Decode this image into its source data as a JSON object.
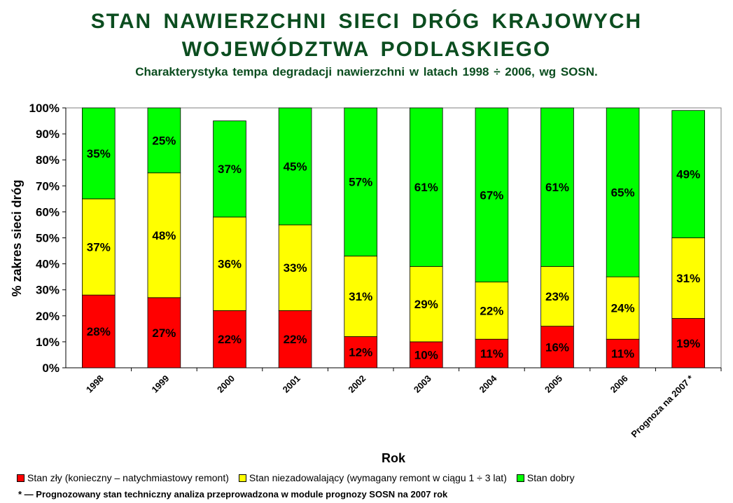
{
  "header": {
    "title_line1": "STAN NAWIERZCHNI SIECI DRÓG KRAJOWYCH",
    "title_line2": "WOJEWÓDZTWA PODLASKIEGO",
    "subtitle": "Charakterystyka tempa degradacji nawierzchni w latach 1998 ÷ 2006, wg SOSN."
  },
  "chart_data": {
    "type": "bar",
    "stacked": true,
    "percent": true,
    "categories": [
      "1998",
      "1999",
      "2000",
      "2001",
      "2002",
      "2003",
      "2004",
      "2005",
      "2006",
      "Prognoza na 2007 *"
    ],
    "series": [
      {
        "name": "Stan zły (konieczny – natychmiastowy remont)",
        "color": "#ff0000",
        "values": [
          28,
          27,
          22,
          22,
          12,
          10,
          11,
          16,
          11,
          19
        ],
        "labels": [
          "28%",
          "27%",
          "22%",
          "22%",
          "12%",
          "10%",
          "11%",
          "16%",
          "11%",
          "19%"
        ]
      },
      {
        "name": "Stan niezadowalający (wymagany  remont w ciągu 1 ÷ 3 lat)",
        "color": "#ffff00",
        "values": [
          37,
          48,
          36,
          33,
          31,
          29,
          22,
          23,
          24,
          31
        ],
        "labels": [
          "37%",
          "48%",
          "36%",
          "33%",
          "31%",
          "29%",
          "22%",
          "23%",
          "24%",
          "31%"
        ]
      },
      {
        "name": "Stan dobry",
        "color": "#00ff00",
        "values": [
          35,
          25,
          37,
          45,
          57,
          61,
          67,
          61,
          65,
          49
        ],
        "labels": [
          "35%",
          "25%",
          "37%",
          "45%",
          "57%",
          "61%",
          "67%",
          "61%",
          "65%",
          "49%"
        ]
      }
    ],
    "xlabel": "Rok",
    "ylabel": "% zakres sieci dróg",
    "ylim": [
      0,
      100
    ],
    "yticks": [
      "0%",
      "10%",
      "20%",
      "30%",
      "40%",
      "50%",
      "60%",
      "70%",
      "80%",
      "90%",
      "100%"
    ],
    "grid": false,
    "legend": "bottom"
  },
  "footnote": "* — Prognozowany stan techniczny analiza przeprowadzona w module prognozy SOSN na 2007 rok"
}
